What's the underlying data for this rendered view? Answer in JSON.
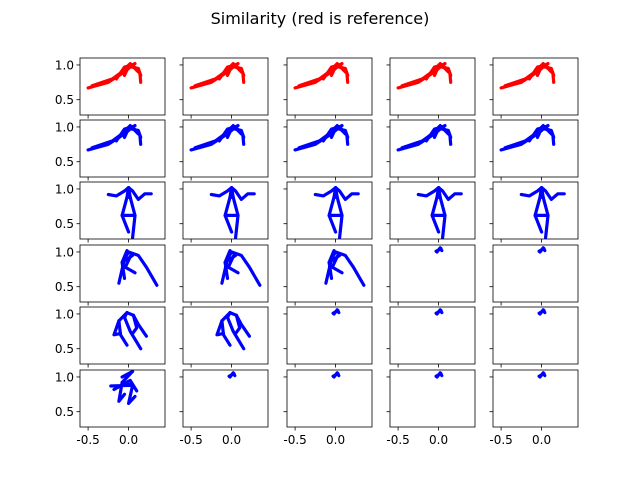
{
  "chart_data": {
    "type": "line",
    "title": "Similarity (red is reference)",
    "rows": 6,
    "cols": 5,
    "xlim": [
      -0.6,
      0.45
    ],
    "ylim": [
      0.28,
      1.1
    ],
    "xticks": [
      -0.5,
      0.0
    ],
    "yticks": [
      0.5,
      1.0
    ],
    "xtick_labels": [
      "-0.5",
      "0.0"
    ],
    "ytick_labels": [
      "0.5",
      "1.0"
    ],
    "colors": {
      "reference": "#ff0000",
      "candidate": "#0000ff"
    },
    "poses": {
      "crouch": [
        [
          [
            -0.5,
            0.67
          ],
          [
            -0.25,
            0.75
          ],
          [
            -0.05,
            0.9
          ],
          [
            0.05,
            1.0
          ]
        ],
        [
          [
            -0.45,
            0.7
          ],
          [
            -0.2,
            0.8
          ],
          [
            0.0,
            0.97
          ],
          [
            0.08,
            1.02
          ]
        ],
        [
          [
            -0.15,
            0.8
          ],
          [
            -0.05,
            0.97
          ],
          [
            0.05,
            1.0
          ]
        ],
        [
          [
            -0.05,
            0.85
          ],
          [
            0.0,
            0.98
          ],
          [
            0.12,
            0.95
          ],
          [
            0.15,
            0.85
          ]
        ],
        [
          [
            0.05,
            1.0
          ],
          [
            0.14,
            0.88
          ],
          [
            0.15,
            0.75
          ]
        ],
        [
          [
            -0.1,
            0.88
          ],
          [
            0.02,
            1.02
          ],
          [
            0.12,
            0.9
          ]
        ]
      ],
      "standing": [
        [
          [
            -0.25,
            0.92
          ],
          [
            -0.15,
            0.9
          ],
          [
            -0.05,
            0.97
          ],
          [
            0.0,
            1.02
          ],
          [
            0.05,
            0.97
          ],
          [
            0.12,
            0.85
          ],
          [
            0.2,
            0.93
          ],
          [
            0.28,
            0.93
          ]
        ],
        [
          [
            0.0,
            1.02
          ],
          [
            -0.02,
            0.88
          ],
          [
            -0.08,
            0.62
          ],
          [
            0.0,
            0.38
          ]
        ],
        [
          [
            0.0,
            1.02
          ],
          [
            0.02,
            0.88
          ],
          [
            0.08,
            0.62
          ],
          [
            0.05,
            0.3
          ]
        ],
        [
          [
            -0.08,
            0.62
          ],
          [
            0.08,
            0.62
          ]
        ],
        [
          [
            -0.02,
            0.88
          ],
          [
            0.02,
            0.88
          ]
        ]
      ],
      "leaning": [
        [
          [
            -0.12,
            0.55
          ],
          [
            -0.08,
            0.75
          ],
          [
            -0.05,
            0.9
          ],
          [
            0.0,
            1.0
          ]
        ],
        [
          [
            0.0,
            1.0
          ],
          [
            0.12,
            0.95
          ],
          [
            0.22,
            0.78
          ],
          [
            0.35,
            0.52
          ]
        ],
        [
          [
            -0.02,
            1.02
          ],
          [
            -0.08,
            0.85
          ],
          [
            -0.05,
            0.62
          ]
        ],
        [
          [
            0.04,
            0.98
          ],
          [
            -0.04,
            0.78
          ],
          [
            0.08,
            0.7
          ]
        ],
        [
          [
            -0.08,
            0.85
          ],
          [
            0.05,
            0.95
          ]
        ]
      ],
      "walking": [
        [
          [
            -0.05,
            0.95
          ],
          [
            -0.02,
            1.02
          ],
          [
            0.06,
            0.98
          ]
        ],
        [
          [
            -0.02,
            1.02
          ],
          [
            -0.12,
            0.9
          ],
          [
            -0.1,
            0.7
          ],
          [
            -0.02,
            0.55
          ]
        ],
        [
          [
            0.06,
            0.98
          ],
          [
            0.12,
            0.85
          ],
          [
            0.22,
            0.68
          ]
        ],
        [
          [
            -0.05,
            0.95
          ],
          [
            0.02,
            0.75
          ],
          [
            0.15,
            0.5
          ]
        ],
        [
          [
            -0.12,
            0.9
          ],
          [
            -0.18,
            0.7
          ],
          [
            -0.1,
            0.72
          ]
        ],
        [
          [
            0.06,
            0.98
          ],
          [
            0.1,
            0.8
          ],
          [
            0.05,
            0.72
          ]
        ]
      ],
      "collapsed": [
        [
          [
            -0.08,
            1.0
          ],
          [
            0.05,
            1.08
          ],
          [
            -0.08,
            0.92
          ],
          [
            0.05,
            0.88
          ],
          [
            -0.22,
            0.87
          ]
        ],
        [
          [
            -0.08,
            0.92
          ],
          [
            -0.12,
            0.65
          ],
          [
            -0.05,
            0.75
          ]
        ],
        [
          [
            0.05,
            0.88
          ],
          [
            0.0,
            0.62
          ],
          [
            0.08,
            0.72
          ]
        ],
        [
          [
            -0.18,
            0.82
          ],
          [
            0.02,
            0.95
          ],
          [
            0.1,
            0.8
          ]
        ]
      ],
      "dot": [
        [
          [
            -0.02,
            1.0
          ],
          [
            0.02,
            1.06
          ],
          [
            0.04,
            1.02
          ]
        ],
        [
          [
            -0.03,
            1.01
          ],
          [
            0.03,
            1.05
          ]
        ]
      ]
    },
    "grid": [
      [
        "crouch",
        "crouch",
        "crouch",
        "crouch",
        "crouch"
      ],
      [
        "crouch",
        "crouch",
        "crouch",
        "crouch",
        "crouch"
      ],
      [
        "standing",
        "standing",
        "standing",
        "standing",
        "standing"
      ],
      [
        "leaning",
        "leaning",
        "leaning",
        "dot",
        "dot"
      ],
      [
        "walking",
        "walking",
        "dot",
        "dot",
        "dot"
      ],
      [
        "collapsed",
        "dot",
        "dot",
        "dot",
        "dot"
      ]
    ],
    "row_series": [
      "reference",
      "candidate",
      "candidate",
      "candidate",
      "candidate",
      "candidate"
    ]
  }
}
